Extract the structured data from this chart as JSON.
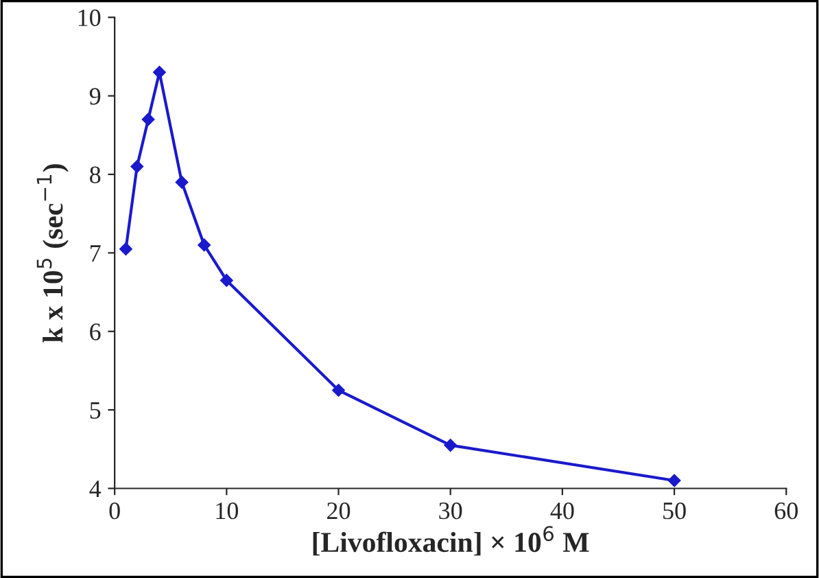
{
  "chart_data": {
    "type": "line",
    "xlabel": "[Livofloxacin] × 10$^{6}$ M",
    "ylabel": "k x 10$^{5}$ (sec$^{−1}$)",
    "x": [
      1,
      2,
      3,
      4,
      6,
      8,
      10,
      20,
      30,
      50
    ],
    "series": [
      {
        "color": "#1a1acc",
        "values": [
          7.05,
          8.1,
          8.7,
          9.3,
          7.9,
          7.1,
          6.65,
          5.25,
          4.55,
          4.1
        ]
      }
    ],
    "xlim": [
      0,
      60
    ],
    "xticks": [
      0,
      10,
      20,
      30,
      40,
      50,
      60
    ],
    "ylim": [
      4,
      10
    ],
    "yticks": [
      4,
      5,
      6,
      7,
      8,
      9,
      10
    ],
    "marker": "diamond",
    "line_style": "solid",
    "grid": false,
    "legend": false
  }
}
